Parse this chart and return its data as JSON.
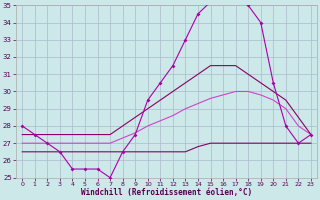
{
  "xlabel": "Windchill (Refroidissement éolien,°C)",
  "bg_color": "#cce8e8",
  "grid_color": "#aabbcc",
  "line_color_temp": "#aa00aa",
  "line_color_max": "#880066",
  "line_color_avg": "#cc44cc",
  "line_color_min": "#880066",
  "hours": [
    0,
    1,
    2,
    3,
    4,
    5,
    6,
    7,
    8,
    9,
    10,
    11,
    12,
    13,
    14,
    15,
    16,
    17,
    18,
    19,
    20,
    21,
    22,
    23
  ],
  "temp": [
    28,
    27.5,
    27,
    26.5,
    25.5,
    25.5,
    25.5,
    25,
    26.5,
    27.5,
    29.5,
    30.5,
    31.5,
    33,
    34.5,
    35.2,
    35.3,
    35.5,
    35.0,
    34.0,
    30.5,
    28.0,
    27.0,
    27.5
  ],
  "max_line": [
    27.5,
    27.5,
    27.5,
    27.5,
    27.5,
    27.5,
    27.5,
    27.5,
    28.0,
    28.5,
    29.0,
    29.5,
    30.0,
    30.5,
    31.0,
    31.5,
    31.5,
    31.5,
    31.0,
    30.5,
    30.0,
    29.5,
    28.5,
    27.5
  ],
  "avg_line": [
    27.0,
    27.0,
    27.0,
    27.0,
    27.0,
    27.0,
    27.0,
    27.0,
    27.3,
    27.6,
    28.0,
    28.3,
    28.6,
    29.0,
    29.3,
    29.6,
    29.8,
    30.0,
    30.0,
    29.8,
    29.5,
    29.0,
    28.0,
    27.5
  ],
  "min_line": [
    26.5,
    26.5,
    26.5,
    26.5,
    26.5,
    26.5,
    26.5,
    26.5,
    26.5,
    26.5,
    26.5,
    26.5,
    26.5,
    26.5,
    26.8,
    27.0,
    27.0,
    27.0,
    27.0,
    27.0,
    27.0,
    27.0,
    27.0,
    27.0
  ],
  "ylim": [
    25,
    35
  ],
  "xlim": [
    0,
    23
  ],
  "yticks": [
    25,
    26,
    27,
    28,
    29,
    30,
    31,
    32,
    33,
    34,
    35
  ],
  "xticks": [
    0,
    1,
    2,
    3,
    4,
    5,
    6,
    7,
    8,
    9,
    10,
    11,
    12,
    13,
    14,
    15,
    16,
    17,
    18,
    19,
    20,
    21,
    22,
    23
  ]
}
